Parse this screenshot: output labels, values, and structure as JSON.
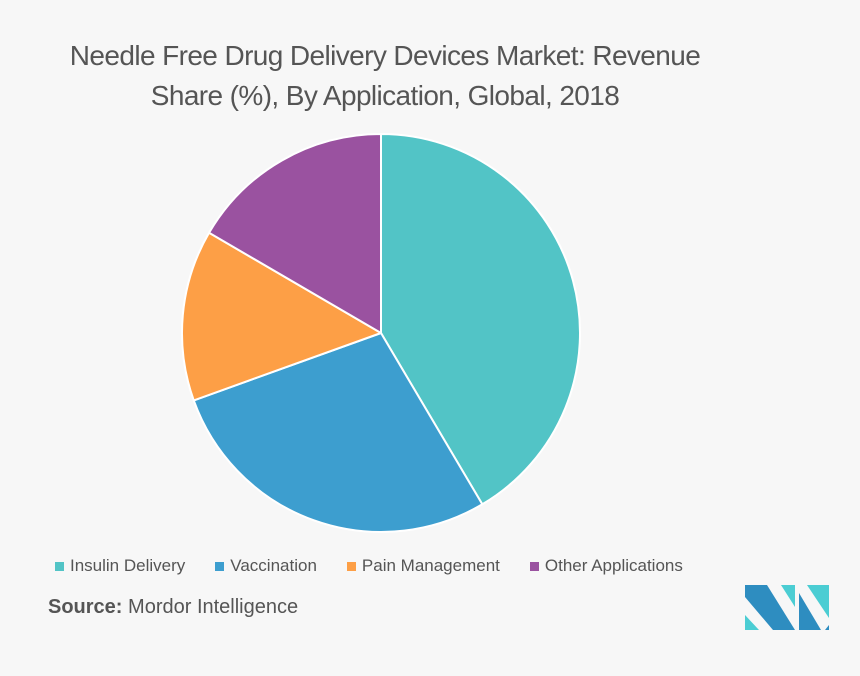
{
  "chart_data": {
    "type": "pie",
    "title": "Needle Free Drug Delivery Devices Market: Revenue Share (%), By Application, Global, 2018",
    "title_lines": [
      "Needle Free Drug Delivery Devices Market: Revenue",
      "Share (%), By Application, Global, 2018"
    ],
    "categories": [
      "Insulin Delivery",
      "Vaccination",
      "Pain Management",
      "Other Applications"
    ],
    "values": [
      41.5,
      28.0,
      13.9,
      16.6
    ],
    "colors": [
      "#52c4c6",
      "#3d9ecf",
      "#fd9f46",
      "#9a52a0"
    ],
    "start_angle_deg": 0,
    "direction": "clockwise",
    "legend_position": "bottom",
    "data_labels": false
  },
  "source": {
    "label": "Source:",
    "text": "Mordor Intelligence"
  },
  "logo": {
    "name": "Mordor Intelligence logo",
    "colors": [
      "#2e8dc0",
      "#4bcdd3"
    ]
  }
}
